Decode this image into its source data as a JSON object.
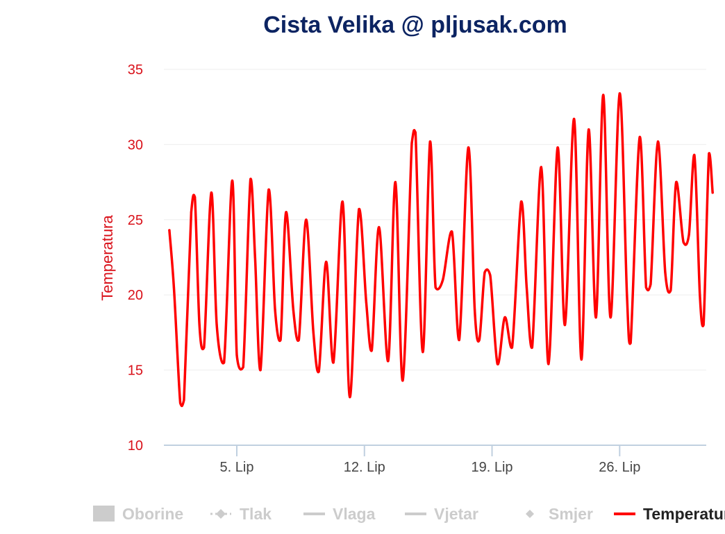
{
  "colors": {
    "series": "#ff0000",
    "title": "#0c2462",
    "axis_text": "#d9111a",
    "grid": "#eeeeee",
    "axis_line": "#c0d0e0",
    "legend_inactive": "#cccccc",
    "legend_active": "#222222"
  },
  "chart_data": {
    "type": "line",
    "title": "Cista Velika @ pljusak.com",
    "ylabel": "Temperatura",
    "xlabel": "",
    "ylim": [
      10,
      35
    ],
    "yticks": [
      "10",
      "15",
      "20",
      "25",
      "30",
      "35"
    ],
    "xlim": [
      1,
      30.75
    ],
    "xticks": [
      {
        "label": "5. Lip",
        "day": 5
      },
      {
        "label": "12. Lip",
        "day": 12
      },
      {
        "label": "19. Lip",
        "day": 19
      },
      {
        "label": "26. Lip",
        "day": 26
      }
    ],
    "grid": true,
    "legend_position": "bottom",
    "series": [
      {
        "name": "Temperatura",
        "points": [
          [
            1.3,
            24.3
          ],
          [
            1.55,
            20.5
          ],
          [
            1.9,
            12.8
          ],
          [
            2.1,
            13.0
          ],
          [
            2.5,
            25.5
          ],
          [
            2.7,
            26.5
          ],
          [
            2.95,
            18.0
          ],
          [
            3.2,
            16.5
          ],
          [
            3.6,
            26.8
          ],
          [
            3.9,
            18.0
          ],
          [
            4.3,
            15.5
          ],
          [
            4.75,
            27.6
          ],
          [
            5.0,
            16.0
          ],
          [
            5.35,
            15.2
          ],
          [
            5.75,
            27.7
          ],
          [
            6.0,
            22.5
          ],
          [
            6.3,
            15.0
          ],
          [
            6.75,
            27.0
          ],
          [
            7.1,
            19.0
          ],
          [
            7.4,
            17.0
          ],
          [
            7.7,
            25.5
          ],
          [
            8.1,
            19.0
          ],
          [
            8.4,
            17.0
          ],
          [
            8.8,
            25.0
          ],
          [
            9.2,
            17.5
          ],
          [
            9.5,
            14.9
          ],
          [
            9.9,
            22.2
          ],
          [
            10.3,
            15.5
          ],
          [
            10.8,
            26.2
          ],
          [
            11.2,
            13.2
          ],
          [
            11.7,
            25.7
          ],
          [
            12.1,
            19.5
          ],
          [
            12.4,
            16.3
          ],
          [
            12.8,
            24.5
          ],
          [
            13.3,
            15.6
          ],
          [
            13.7,
            27.5
          ],
          [
            14.1,
            14.3
          ],
          [
            14.6,
            30.1
          ],
          [
            14.8,
            30.8
          ],
          [
            15.2,
            16.2
          ],
          [
            15.6,
            30.2
          ],
          [
            15.9,
            20.5
          ],
          [
            16.3,
            21.0
          ],
          [
            16.8,
            24.2
          ],
          [
            17.2,
            17.0
          ],
          [
            17.7,
            29.8
          ],
          [
            18.05,
            19.0
          ],
          [
            18.3,
            17.0
          ],
          [
            18.6,
            21.5
          ],
          [
            18.9,
            21.3
          ],
          [
            19.3,
            15.4
          ],
          [
            19.7,
            18.5
          ],
          [
            20.1,
            16.5
          ],
          [
            20.6,
            26.2
          ],
          [
            20.9,
            20.5
          ],
          [
            21.2,
            16.5
          ],
          [
            21.7,
            28.5
          ],
          [
            22.1,
            15.4
          ],
          [
            22.6,
            29.8
          ],
          [
            23.0,
            18.0
          ],
          [
            23.5,
            31.7
          ],
          [
            23.9,
            15.7
          ],
          [
            24.3,
            31.0
          ],
          [
            24.7,
            18.5
          ],
          [
            25.1,
            33.3
          ],
          [
            25.5,
            18.5
          ],
          [
            26.0,
            33.4
          ],
          [
            26.4,
            20.0
          ],
          [
            26.6,
            16.8
          ],
          [
            27.1,
            30.5
          ],
          [
            27.45,
            20.5
          ],
          [
            27.7,
            20.7
          ],
          [
            28.1,
            30.2
          ],
          [
            28.5,
            21.5
          ],
          [
            28.8,
            20.3
          ],
          [
            29.1,
            27.5
          ],
          [
            29.5,
            23.5
          ],
          [
            29.8,
            24.0
          ],
          [
            30.1,
            29.3
          ],
          [
            30.4,
            20.0
          ],
          [
            30.6,
            18.0
          ],
          [
            30.9,
            29.4
          ],
          [
            31.1,
            26.8
          ]
        ]
      }
    ],
    "legend": [
      {
        "name": "Oborine",
        "symbol": "square",
        "active": false
      },
      {
        "name": "Tlak",
        "symbol": "dashed-diamond",
        "active": false
      },
      {
        "name": "Vlaga",
        "symbol": "line",
        "active": false
      },
      {
        "name": "Vjetar",
        "symbol": "line",
        "active": false
      },
      {
        "name": "Smjer",
        "symbol": "diamond",
        "active": false
      },
      {
        "name": "Temperatura",
        "symbol": "line",
        "active": true
      }
    ]
  }
}
